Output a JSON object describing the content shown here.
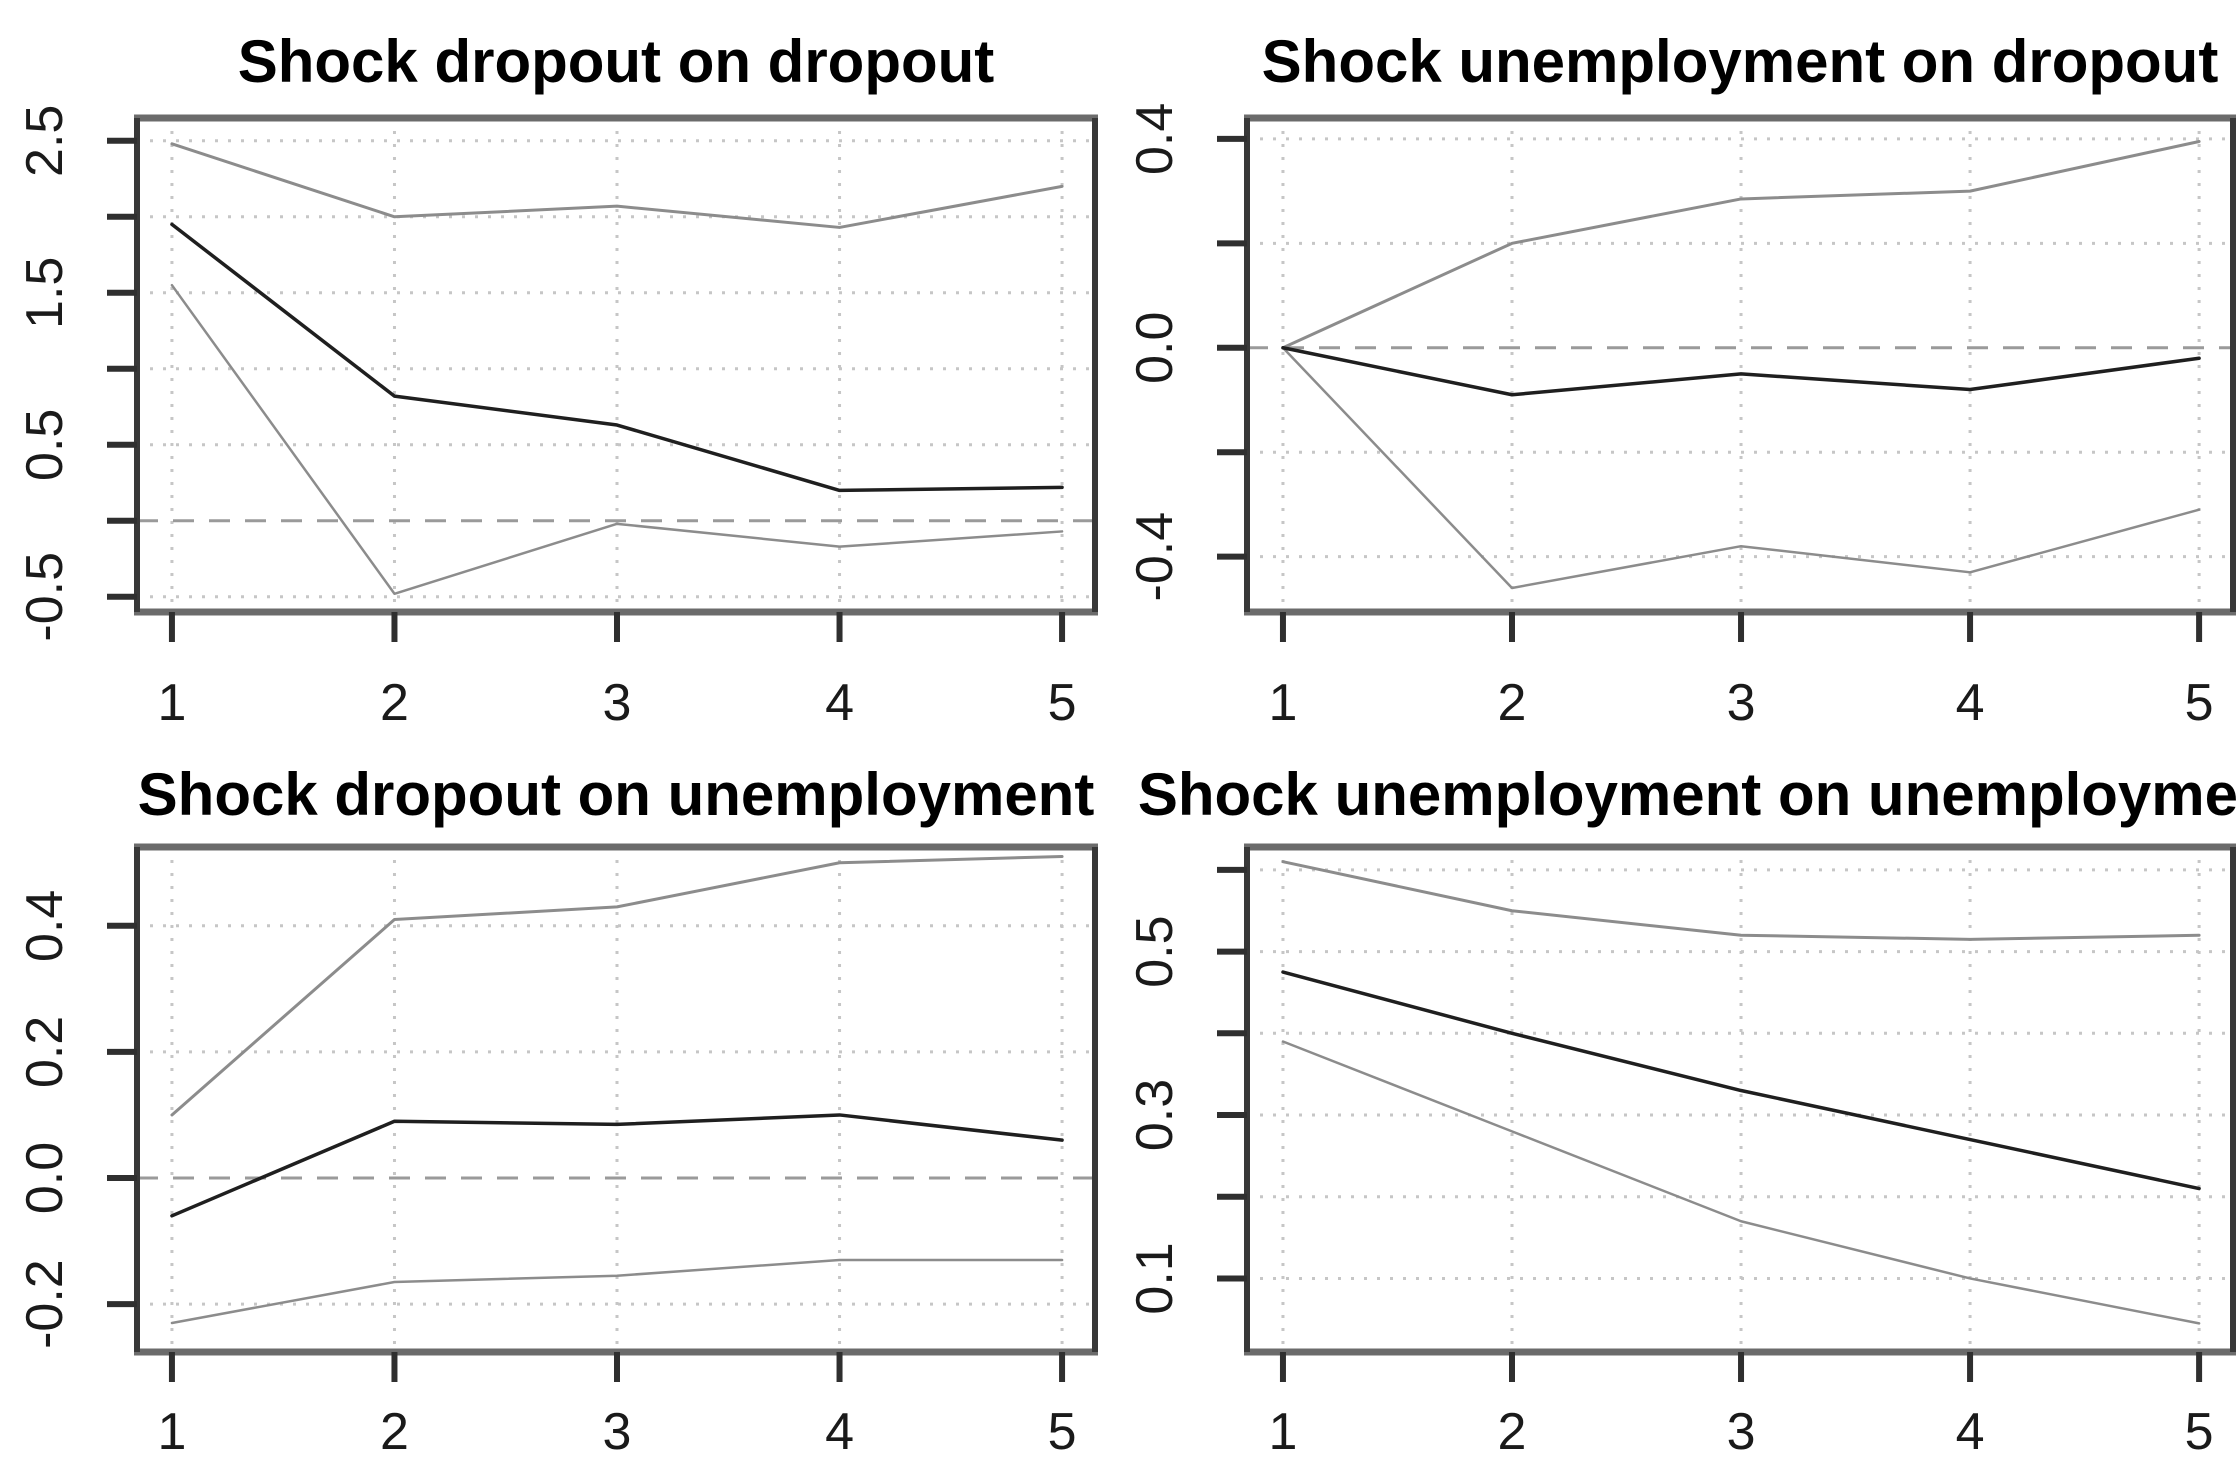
{
  "figure": {
    "background": "#ffffff",
    "frame_color_tb": "#6b6b6b",
    "frame_color_lr": "#383838",
    "grid_color": "#c6c6c6",
    "zero_line_color": "#9a9a9a",
    "tick_color": "#2f2f2f",
    "label_color": "#1a1a1a",
    "title_color": "#000000",
    "ci_color": "#8c8c8c",
    "center_color": "#1f1f1f"
  },
  "chart_data": [
    {
      "id": "shock-dropout-on-dropout",
      "type": "line",
      "title": "Shock dropout on dropout",
      "x": [
        1,
        2,
        3,
        4,
        5
      ],
      "xticks": [
        1,
        2,
        3,
        4,
        5
      ],
      "xtick_labels": [
        "1",
        "2",
        "3",
        "4",
        "5"
      ],
      "xlim": [
        0.843,
        5.148
      ],
      "ylim": [
        -0.6,
        2.65
      ],
      "yticks": [
        -0.5,
        0,
        0.5,
        1,
        1.5,
        2,
        2.5
      ],
      "ytick_labels": [
        "-0.5",
        "",
        "0.5",
        "",
        "1.5",
        "",
        "2.5"
      ],
      "grid": true,
      "zero_line": true,
      "legend": "none",
      "series": [
        {
          "name": "upper-ci",
          "role": "ci",
          "values": [
            2.48,
            2.0,
            2.07,
            1.93,
            2.2
          ]
        },
        {
          "name": "lower-ci",
          "role": "ci",
          "values": [
            1.55,
            -0.48,
            -0.02,
            -0.17,
            -0.07
          ]
        },
        {
          "name": "irf-center",
          "role": "center",
          "values": [
            1.95,
            0.82,
            0.63,
            0.2,
            0.22
          ]
        }
      ]
    },
    {
      "id": "shock-unemployment-on-dropout",
      "type": "line",
      "title": "Shock unemployment on dropout",
      "x": [
        1,
        2,
        3,
        4,
        5
      ],
      "xticks": [
        1,
        2,
        3,
        4,
        5
      ],
      "xtick_labels": [
        "1",
        "2",
        "3",
        "4",
        "5"
      ],
      "xlim": [
        0.843,
        5.148
      ],
      "ylim": [
        -0.506,
        0.44
      ],
      "yticks": [
        -0.4,
        -0.2,
        0,
        0.2,
        0.4
      ],
      "ytick_labels": [
        "-0.4",
        "",
        "0.0",
        "",
        "0.4"
      ],
      "grid": true,
      "zero_line": true,
      "legend": "none",
      "series": [
        {
          "name": "upper-ci",
          "role": "ci",
          "values": [
            0.0,
            0.2,
            0.285,
            0.3,
            0.395
          ]
        },
        {
          "name": "lower-ci",
          "role": "ci",
          "values": [
            0.0,
            -0.46,
            -0.38,
            -0.43,
            -0.31
          ]
        },
        {
          "name": "irf-center",
          "role": "center",
          "values": [
            0.0,
            -0.09,
            -0.05,
            -0.08,
            -0.02
          ]
        }
      ]
    },
    {
      "id": "shock-dropout-on-unemployment",
      "type": "line",
      "title": "Shock dropout on unemployment",
      "x": [
        1,
        2,
        3,
        4,
        5
      ],
      "xticks": [
        1,
        2,
        3,
        4,
        5
      ],
      "xtick_labels": [
        "1",
        "2",
        "3",
        "4",
        "5"
      ],
      "xlim": [
        0.843,
        5.148
      ],
      "ylim": [
        -0.276,
        0.525
      ],
      "yticks": [
        -0.2,
        0,
        0.2,
        0.4
      ],
      "ytick_labels": [
        "-0.2",
        "0.0",
        "0.2",
        "0.4"
      ],
      "grid": true,
      "zero_line": true,
      "legend": "none",
      "series": [
        {
          "name": "upper-ci",
          "role": "ci",
          "values": [
            0.1,
            0.41,
            0.43,
            0.5,
            0.51
          ]
        },
        {
          "name": "lower-ci",
          "role": "ci",
          "values": [
            -0.23,
            -0.165,
            -0.155,
            -0.13,
            -0.13
          ]
        },
        {
          "name": "irf-center",
          "role": "center",
          "values": [
            -0.06,
            0.09,
            0.085,
            0.1,
            0.06
          ]
        }
      ]
    },
    {
      "id": "shock-unemployment-on-unemployment",
      "type": "line",
      "title": "Shock unemployment on unemployme",
      "title_truncated_at_right_edge": true,
      "x": [
        1,
        2,
        3,
        4,
        5
      ],
      "xticks": [
        1,
        2,
        3,
        4,
        5
      ],
      "xtick_labels": [
        "1",
        "2",
        "3",
        "4",
        "5"
      ],
      "xlim": [
        0.843,
        5.148
      ],
      "ylim": [
        0.01,
        0.628
      ],
      "yticks": [
        0.1,
        0.2,
        0.3,
        0.4,
        0.5,
        0.6
      ],
      "ytick_labels": [
        "0.1",
        "",
        "0.3",
        "",
        "0.5",
        ""
      ],
      "grid": true,
      "zero_line": false,
      "legend": "none",
      "series": [
        {
          "name": "upper-ci",
          "role": "ci",
          "values": [
            0.61,
            0.55,
            0.52,
            0.515,
            0.52
          ]
        },
        {
          "name": "lower-ci",
          "role": "ci",
          "values": [
            0.39,
            0.28,
            0.17,
            0.1,
            0.045
          ]
        },
        {
          "name": "irf-center",
          "role": "center",
          "values": [
            0.475,
            0.4,
            0.33,
            0.27,
            0.21
          ]
        }
      ]
    }
  ]
}
